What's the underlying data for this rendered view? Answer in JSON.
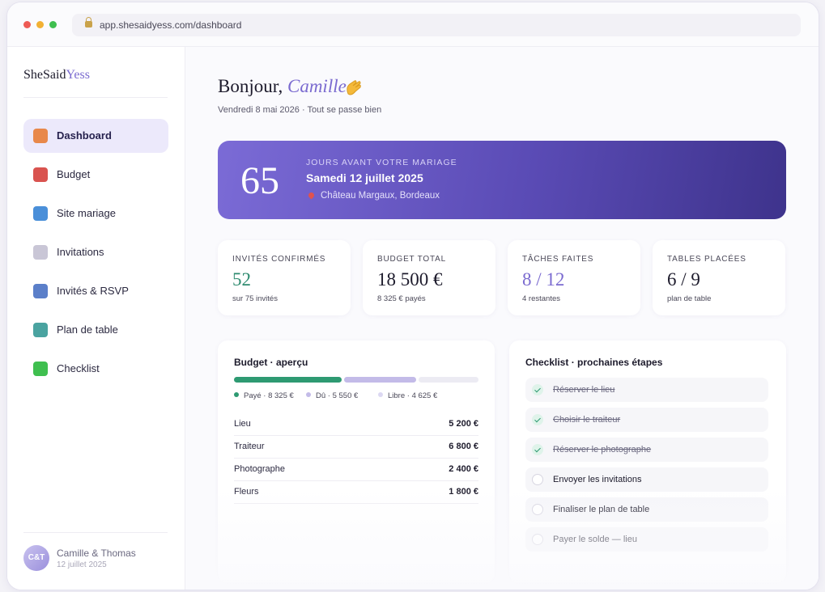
{
  "browser": {
    "url": "app.shesaidyess.com/dashboard"
  },
  "sidebar": {
    "logo": {
      "main": "SheSaid",
      "accent": "Yess"
    },
    "nav": [
      {
        "label": "Dashboard",
        "active": true
      },
      {
        "label": "Budget",
        "active": false
      },
      {
        "label": "Site mariage",
        "active": false
      },
      {
        "label": "Invitations",
        "active": false
      },
      {
        "label": "Invités & RSVP",
        "active": false
      },
      {
        "label": "Plan de table",
        "active": false
      },
      {
        "label": "Checklist",
        "active": false
      }
    ],
    "user": {
      "initials": "C&T",
      "name": "Camille & Thomas",
      "date": "12 juillet 2025"
    }
  },
  "header": {
    "greeting": "Bonjour,",
    "name": "Camille",
    "subtitle": "Vendredi 8 mai 2026 · Tout se passe bien"
  },
  "countdown": {
    "days": 65,
    "label": "JOURS AVANT VOTRE MARIAGE",
    "date": "Samedi 12 juillet 2025",
    "location": "Château Margaux, Bordeaux"
  },
  "stats": [
    {
      "label": "INVITÉS CONFIRMÉS",
      "value": "52",
      "note": "sur 75 invités",
      "color": "#2e8b6f"
    },
    {
      "label": "BUDGET TOTAL",
      "value": "18 500 €",
      "note": "8 325 € payés",
      "color": "#1d1b2c"
    },
    {
      "label": "TÂCHES FAITES",
      "value": "8 / 12",
      "note": "4 restantes",
      "color": "#7b6bd0"
    },
    {
      "label": "TABLES PLACÉES",
      "value": "6 / 9",
      "note": "plan de table",
      "color": "#1d1b2c"
    }
  ],
  "budget": {
    "title": "Budget · aperçu",
    "segments": [
      {
        "label": "Payé · 8 325 €",
        "value": 8325,
        "color": "#2e9a72"
      },
      {
        "label": "Dû · 5 550 €",
        "value": 5550,
        "color": "#c3bbe8"
      },
      {
        "label": "Libre · 4 625 €",
        "value": 4625,
        "color": "#ecebf3"
      }
    ],
    "rows": [
      {
        "label": "Lieu",
        "amount": "5 200 €"
      },
      {
        "label": "Traiteur",
        "amount": "6 800 €"
      },
      {
        "label": "Photographe",
        "amount": "2 400 €"
      },
      {
        "label": "Fleurs",
        "amount": "1 800 €"
      }
    ]
  },
  "checklist": {
    "title": "Checklist · prochaines étapes",
    "items": [
      {
        "label": "Réserver le lieu",
        "done": true
      },
      {
        "label": "Choisir le traiteur",
        "done": true
      },
      {
        "label": "Réserver le photographe",
        "done": true
      },
      {
        "label": "Envoyer les invitations",
        "done": false
      },
      {
        "label": "Finaliser le plan de table",
        "done": false
      },
      {
        "label": "Payer le solde — lieu",
        "done": false
      }
    ]
  }
}
